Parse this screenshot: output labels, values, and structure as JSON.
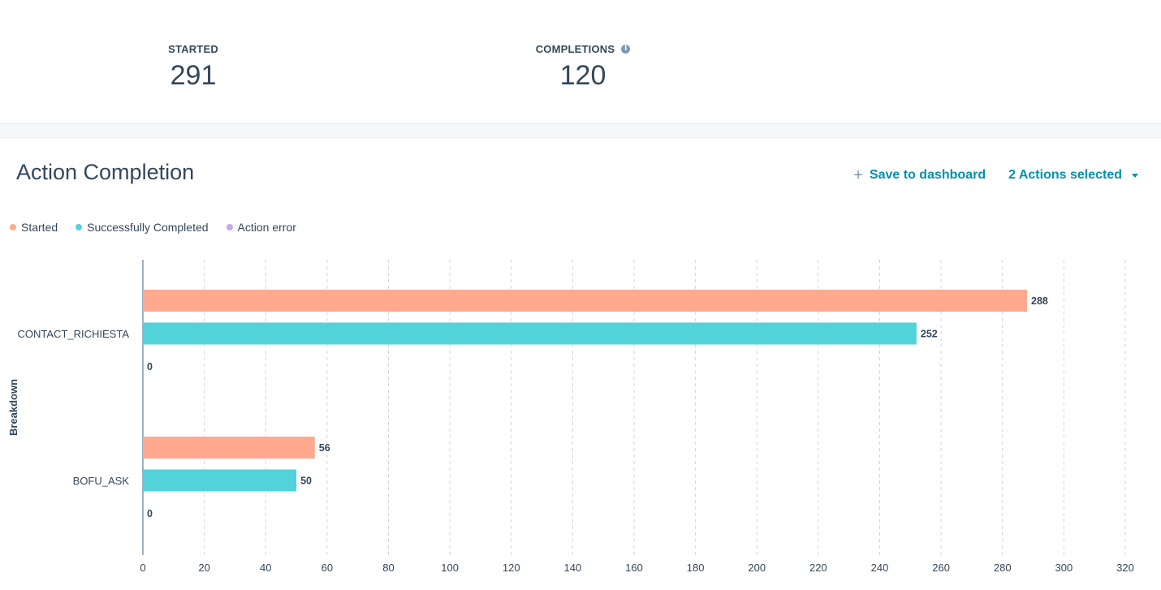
{
  "summary": {
    "started_label": "STARTED",
    "started_value": "291",
    "completions_label": "COMPLETIONS",
    "completions_value": "120",
    "info_glyph": "i"
  },
  "header": {
    "title": "Action Completion",
    "save_label": "Save to dashboard",
    "plus_glyph": "+",
    "actions_selected_label": "2 Actions selected"
  },
  "colors": {
    "started": "#ffa98f",
    "completed": "#51d3d9",
    "error": "#c5a9ea",
    "accent": "#0091ae",
    "text": "#33475b"
  },
  "chart_data": {
    "type": "bar",
    "orientation": "horizontal",
    "title": "Action Completion",
    "ylabel": "Breakdown",
    "xlabel": "",
    "categories": [
      "CONTACT_RICHIESTA",
      "BOFU_ASK"
    ],
    "series": [
      {
        "name": "Started",
        "values": [
          288,
          56
        ]
      },
      {
        "name": "Successfully Completed",
        "values": [
          252,
          50
        ]
      },
      {
        "name": "Action error",
        "values": [
          0,
          0
        ]
      }
    ],
    "xlim": [
      0,
      320
    ],
    "xticks": [
      0,
      20,
      40,
      60,
      80,
      100,
      120,
      140,
      160,
      180,
      200,
      220,
      240,
      260,
      280,
      300,
      320
    ],
    "grid": true,
    "legend_position": "top-left"
  }
}
